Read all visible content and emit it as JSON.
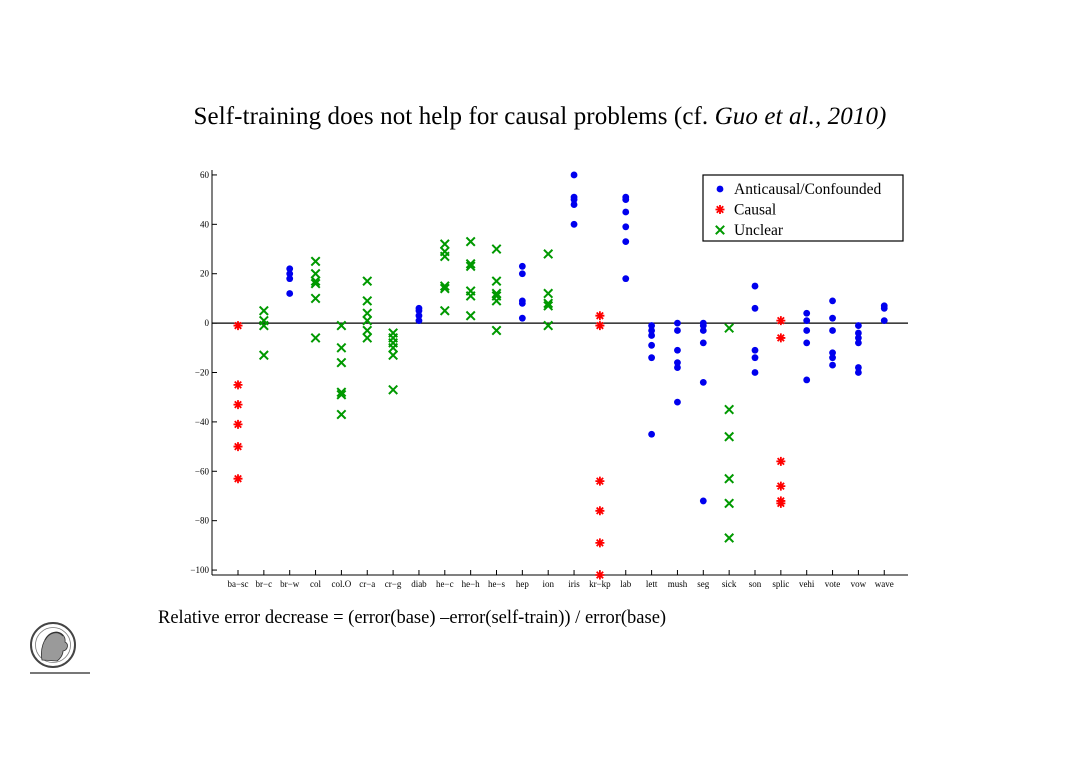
{
  "title": {
    "main": "Self-training does not help for causal problems (cf.",
    "citation": "Guo et al., 2010)"
  },
  "formula": "Relative error decrease = (error(base) –error(self-train)) / error(base)",
  "logo": {
    "icon": "max-planck-minerva-logo"
  },
  "chart_data": {
    "type": "scatter",
    "title": "",
    "xlabel": "",
    "ylabel": "",
    "ylim": [
      -102,
      62
    ],
    "yticks": [
      60,
      40,
      20,
      0,
      -20,
      -40,
      -60,
      -80,
      -100
    ],
    "yticklabels": [
      "60",
      "40",
      "20",
      "0",
      "−20",
      "−40",
      "−60",
      "−80",
      "−100"
    ],
    "grid": false,
    "zero_line": true,
    "legend_placement": "top-right",
    "categories": [
      "ba−sc",
      "br−c",
      "br−w",
      "col",
      "col.O",
      "cr−a",
      "cr−g",
      "diab",
      "he−c",
      "he−h",
      "he−s",
      "hep",
      "ion",
      "iris",
      "kr−kp",
      "lab",
      "lett",
      "mush",
      "seg",
      "sick",
      "son",
      "splic",
      "vehi",
      "vote",
      "vow",
      "wave"
    ],
    "series": [
      {
        "name": "Anticausal/Confounded",
        "color": "#0000ee",
        "marker": "dot",
        "points": [
          {
            "x": "br−w",
            "y": [
              22,
              20,
              18,
              12
            ]
          },
          {
            "x": "diab",
            "y": [
              6,
              5,
              3,
              1
            ]
          },
          {
            "x": "hep",
            "y": [
              23,
              20,
              9,
              8,
              2
            ]
          },
          {
            "x": "iris",
            "y": [
              60,
              51,
              50,
              48,
              40
            ]
          },
          {
            "x": "lab",
            "y": [
              51,
              50,
              45,
              39,
              33,
              18
            ]
          },
          {
            "x": "lett",
            "y": [
              -1,
              -3,
              -5,
              -9,
              -14,
              -45
            ]
          },
          {
            "x": "mush",
            "y": [
              0,
              -3,
              -11,
              -16,
              -18,
              -32
            ]
          },
          {
            "x": "seg",
            "y": [
              0,
              -1,
              -3,
              -8,
              -24,
              -72
            ]
          },
          {
            "x": "son",
            "y": [
              15,
              6,
              -11,
              -14,
              -20
            ]
          },
          {
            "x": "vehi",
            "y": [
              4,
              1,
              -3,
              -8,
              -23
            ]
          },
          {
            "x": "vote",
            "y": [
              9,
              2,
              -3,
              -12,
              -14,
              -17
            ]
          },
          {
            "x": "vow",
            "y": [
              -1,
              -4,
              -6,
              -8,
              -18,
              -20
            ]
          },
          {
            "x": "wave",
            "y": [
              7,
              6,
              1
            ]
          }
        ]
      },
      {
        "name": "Causal",
        "color": "#ff0000",
        "marker": "asterisk",
        "points": [
          {
            "x": "ba−sc",
            "y": [
              -1,
              -25,
              -33,
              -41,
              -50,
              -63
            ]
          },
          {
            "x": "kr−kp",
            "y": [
              3,
              -1,
              -64,
              -76,
              -89,
              -102
            ]
          },
          {
            "x": "splic",
            "y": [
              1,
              -6,
              -56,
              -66,
              -72,
              -73
            ]
          }
        ]
      },
      {
        "name": "Unclear",
        "color": "#009900",
        "marker": "x",
        "points": [
          {
            "x": "br−c",
            "y": [
              5,
              1,
              -1,
              -13
            ]
          },
          {
            "x": "col",
            "y": [
              25,
              20,
              17,
              16,
              10,
              -6
            ]
          },
          {
            "x": "col.O",
            "y": [
              -1,
              -10,
              -16,
              -28,
              -29,
              -37
            ]
          },
          {
            "x": "cr−a",
            "y": [
              17,
              9,
              4,
              1,
              -3,
              -6
            ]
          },
          {
            "x": "cr−g",
            "y": [
              -4,
              -6,
              -8,
              -10,
              -13,
              -27
            ]
          },
          {
            "x": "he−c",
            "y": [
              32,
              29,
              27,
              15,
              14,
              5
            ]
          },
          {
            "x": "he−h",
            "y": [
              33,
              24,
              23,
              13,
              11,
              3
            ]
          },
          {
            "x": "he−s",
            "y": [
              30,
              17,
              12,
              11,
              9,
              -3
            ]
          },
          {
            "x": "ion",
            "y": [
              28,
              12,
              8,
              7,
              -1
            ]
          },
          {
            "x": "sick",
            "y": [
              -2,
              -35,
              -46,
              -63,
              -73,
              -87
            ]
          }
        ]
      }
    ]
  }
}
